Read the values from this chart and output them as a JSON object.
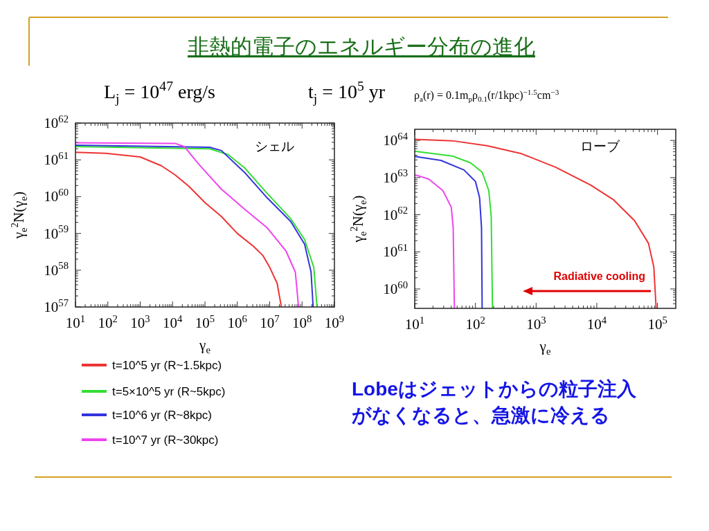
{
  "chart_data": [
    {
      "type": "line",
      "title": "非熱的電子のエネルギー分布の進化",
      "xlabel": "γ$_{e}$",
      "ylabel": "γ$_{e}$$^{2}$N(γ$_{e}$)",
      "log": "xy",
      "xlim": [
        10,
        1000000000.0
      ],
      "ylim": [
        1e+57,
        1e+62
      ],
      "xticks": [
        {
          "value": 10,
          "label": "10$^{1}$"
        },
        {
          "value": 100,
          "label": "10$^{2}$"
        },
        {
          "value": 1000,
          "label": "10$^{3}$"
        },
        {
          "value": 10000.0,
          "label": "10$^{4}$"
        },
        {
          "value": 100000.0,
          "label": "10$^{5}$"
        },
        {
          "value": 1000000.0,
          "label": "10$^{6}$"
        },
        {
          "value": 10000000.0,
          "label": "10$^{7}$"
        },
        {
          "value": 100000000.0,
          "label": "10$^{8}$"
        },
        {
          "value": 1000000000.0,
          "label": "10$^{9}$"
        }
      ],
      "yticks": [
        {
          "value": 1e+57,
          "label": "10$^{57}$"
        },
        {
          "value": 1e+58,
          "label": "10$^{58}$"
        },
        {
          "value": 1e+59,
          "label": "10$^{59}$"
        },
        {
          "value": 1e+60,
          "label": "10$^{60}$"
        },
        {
          "value": 1e+61,
          "label": "10$^{61}$"
        },
        {
          "value": 1e+62,
          "label": "10$^{62}$"
        }
      ],
      "legend": "bottom",
      "annotations": [
        "L$_{j}$ = 10$^{47}$ erg/s",
        "t$_{j}$ = 10$^{5}$ yr",
        "シェル"
      ],
      "series": [
        {
          "name": "t=10^5 yr (R~1.5kpc)",
          "color": "#ee3333",
          "x": [
            10,
            87,
            1000,
            4500,
            12000,
            32000,
            100000.0,
            320000.0,
            1000000.0,
            3200000.0,
            6200000.0,
            10000000.0,
            17000000.0,
            23000000.0
          ],
          "values": [
            1.6e+61,
            1.5e+61,
            1.2e+61,
            6.9e+60,
            3.9e+60,
            1.9e+60,
            6.9e+59,
            2.9e+59,
            1e+59,
            4.4e+58,
            2.5e+58,
            1.2e+58,
            4.4e+57,
            1e+57
          ]
        },
        {
          "name": "t=5×10^5 yr (R~5kpc)",
          "color": "#33dd33",
          "x": [
            10,
            140000.0,
            520000.0,
            1700000.0,
            8500000.0,
            45000000.0,
            120000000.0,
            230000000.0,
            290000000.0
          ],
          "values": [
            2.3e+61,
            2e+61,
            1.4e+61,
            6e+60,
            1.2e+60,
            2.5e+59,
            6.8e+58,
            1.2e+58,
            1e+57
          ]
        },
        {
          "name": "t=10^6 yr (R~8kpc)",
          "color": "#3333dd",
          "x": [
            10,
            140000.0,
            320000.0,
            1700000.0,
            8500000.0,
            45000000.0,
            120000000.0,
            190000000.0,
            220000000.0
          ],
          "values": [
            2.5e+61,
            2.2e+61,
            1.8e+61,
            4.5e+60,
            9.1e+59,
            2.1e+59,
            5.1e+58,
            8.9e+57,
            1e+57
          ]
        },
        {
          "name": "t=10^7 yr (R~30kpc)",
          "color": "#ee44ee",
          "x": [
            10,
            12000.0,
            23000.0,
            62000.0,
            320000.0,
            1700000.0,
            8500000.0,
            32000000.0,
            62000000.0,
            78000000.0
          ],
          "values": [
            2.9e+61,
            2.8e+61,
            2.3e+61,
            7.9e+60,
            1.6e+60,
            4.5e+59,
            1.4e+59,
            3.3e+58,
            8.9e+57,
            1e+57
          ]
        }
      ]
    },
    {
      "type": "line",
      "xlabel": "γ$_{e}$",
      "ylabel": "γ$_{e}$$^{2}$N(γ$_{e}$)",
      "log": "xy",
      "xlim": [
        10,
        200000.0
      ],
      "ylim": [
        3e+59,
        2e+64
      ],
      "xticks": [
        {
          "value": 10,
          "label": "10$^{1}$"
        },
        {
          "value": 100,
          "label": "10$^{2}$"
        },
        {
          "value": 1000,
          "label": "10$^{3}$"
        },
        {
          "value": 10000.0,
          "label": "10$^{4}$"
        },
        {
          "value": 100000.0,
          "label": "10$^{5}$"
        }
      ],
      "yticks": [
        {
          "value": 1e+60,
          "label": "10$^{60}$"
        },
        {
          "value": 1e+61,
          "label": "10$^{61}$"
        },
        {
          "value": 1e+62,
          "label": "10$^{62}$"
        },
        {
          "value": 1e+63,
          "label": "10$^{63}$"
        },
        {
          "value": 1e+64,
          "label": "10$^{64}$"
        }
      ],
      "annotations": [
        "ρ$_{a}$(r) = 0.1m$_{p}$ρ$_{0.1}$(r/1kpc)$^{−1.5}$cm$^{−3}$",
        "ローブ",
        "Radiative cooling",
        "Lobeはジェットからの粒子注入がなくなると、急激に冷える"
      ],
      "series": [
        {
          "color": "#ee3333",
          "x": [
            10,
            42,
            155,
            575,
            2100,
            7900,
            19000.0,
            42000.0,
            71000.0,
            87000.0,
            95000.0
          ],
          "values": [
            1.07e+64,
            9.8e+63,
            7.2e+63,
            4.4e+63,
            1.9e+63,
            6.3e+62,
            2.5e+62,
            6.9e+61,
            1.7e+61,
            3.9e+60,
            3e+59
          ]
        },
        {
          "color": "#33dd33",
          "x": [
            10,
            42,
            83,
            129,
            166,
            182,
            191
          ],
          "values": [
            5.1e+63,
            3.8e+63,
            2.5e+63,
            1.4e+63,
            4.5e+62,
            9.1e+61,
            3e+59
          ]
        },
        {
          "color": "#3333dd",
          "x": [
            10,
            27,
            65,
            100,
            117,
            126,
            129
          ],
          "values": [
            3.7e+63,
            2.9e+63,
            1.6e+63,
            7.9e+62,
            2.9e+62,
            4.5e+61,
            3e+59
          ]
        },
        {
          "color": "#ee44ee",
          "x": [
            10,
            17,
            29,
            40,
            43,
            45
          ],
          "values": [
            1.2e+63,
            9.1e+62,
            4.5e+62,
            1.6e+62,
            4.5e+61,
            3e+59
          ]
        }
      ]
    }
  ]
}
